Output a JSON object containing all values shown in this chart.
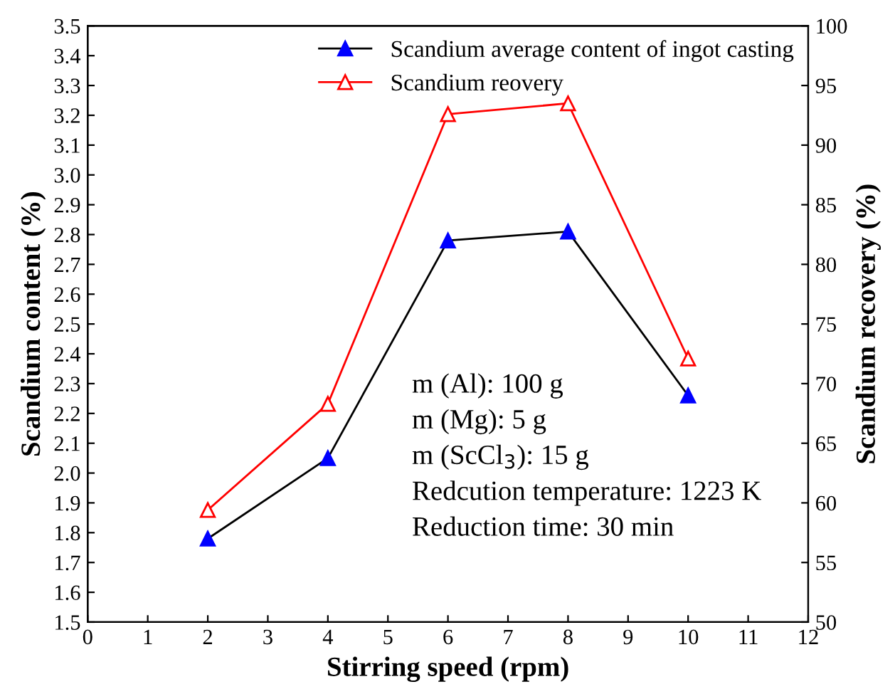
{
  "chart_data": {
    "type": "line",
    "xlabel": "Stirring speed (rpm)",
    "ylabel": "Scandium content (%)",
    "y2label": "Scandium recovery (%)",
    "x": [
      2,
      4,
      6,
      8,
      10
    ],
    "series": [
      {
        "name": "Scandium average content of ingot casting",
        "color": "#000000",
        "colors": [
          "#0000ff",
          "#0000ff",
          "#0000ff",
          "#0000ff",
          "#0000ff"
        ],
        "values": [
          1.78,
          2.05,
          2.78,
          2.81,
          2.26
        ]
      },
      {
        "name": "Scandium reovery",
        "color": "#ff0000",
        "axis": "y2",
        "values": [
          59.4,
          68.3,
          92.6,
          93.5,
          72.1
        ]
      }
    ],
    "marker": "triangle",
    "legend": "top right",
    "xlim": [
      0,
      12
    ],
    "xticks": [
      0,
      1,
      2,
      3,
      4,
      5,
      6,
      7,
      8,
      9,
      10,
      11,
      12
    ],
    "ylim": [
      1.5,
      3.5
    ],
    "yticks": [
      1.5,
      1.6,
      1.7,
      1.8,
      1.9,
      {
        "value": 2,
        "label": "2.0"
      },
      2.1,
      2.2,
      2.3,
      2.4,
      2.5,
      2.6,
      2.7,
      2.8,
      2.9,
      {
        "value": 3,
        "label": "3.0"
      },
      3.1,
      3.2,
      3.3,
      3.4,
      3.5
    ],
    "y2lim": [
      50,
      100
    ],
    "y2ticks": [
      50,
      55,
      60,
      65,
      70,
      75,
      80,
      85,
      90,
      95,
      100
    ],
    "annotations": [
      "m (Al): 100 g",
      "m (Mg): 5 g",
      "m (ScCl$_{3}$): 15 g",
      "Redcution temperature: 1223 K",
      "Reduction time: 30 min"
    ]
  }
}
